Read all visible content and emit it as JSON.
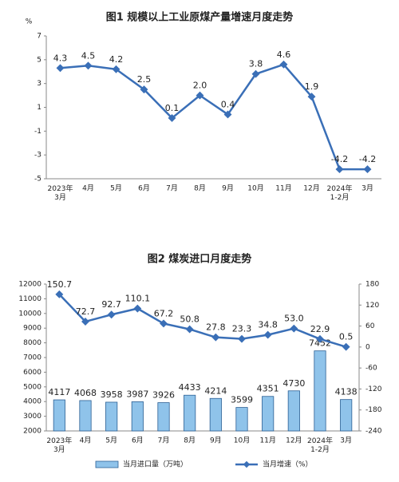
{
  "chart_data": [
    {
      "type": "line",
      "title": "图1  规模以上工业原煤产量增速月度走势",
      "y_label": "%",
      "categories": [
        "2023年\n3月",
        "4月",
        "5月",
        "6月",
        "7月",
        "8月",
        "9月",
        "10月",
        "11月",
        "12月",
        "2024年\n1-2月",
        "3月"
      ],
      "series": [
        {
          "name": "当月增速",
          "color": "#3a6fb7",
          "values": [
            4.3,
            4.5,
            4.2,
            2.5,
            0.1,
            2.0,
            0.4,
            3.8,
            4.6,
            1.9,
            -4.2,
            -4.2
          ],
          "value_labels": [
            "4.3",
            "4.5",
            "4.2",
            "2.5",
            "0.1",
            "2.0",
            "0.4",
            "3.8",
            "4.6",
            "1.9",
            "-4.2",
            "-4.2"
          ]
        }
      ],
      "ylim": [
        -5,
        7
      ],
      "yticks": [
        -5,
        -3,
        -1,
        1,
        3,
        5,
        7
      ]
    },
    {
      "type": "bar_line",
      "title": "图2  煤炭进口月度走势",
      "categories": [
        "2023年\n3月",
        "4月",
        "5月",
        "6月",
        "7月",
        "8月",
        "9月",
        "10月",
        "11月",
        "12月",
        "2024年\n1-2月",
        "3月"
      ],
      "series": [
        {
          "name": "当月进口量（万吨）",
          "type": "bar",
          "color": "#8fc3ea",
          "values": [
            4117,
            4068,
            3958,
            3987,
            3926,
            4433,
            4214,
            3599,
            4351,
            4730,
            7452,
            4138
          ]
        },
        {
          "name": "当月增速（%）",
          "type": "line",
          "axis": "y2",
          "color": "#3a6fb7",
          "values": [
            150.7,
            72.7,
            92.7,
            110.1,
            67.2,
            50.8,
            27.8,
            23.3,
            34.8,
            53.0,
            22.9,
            0.5
          ],
          "value_labels": [
            "150.7",
            "72.7",
            "92.7",
            "110.1",
            "67.2",
            "50.8",
            "27.8",
            "23.3",
            "34.8",
            "53.0",
            "22.9",
            "0.5"
          ]
        }
      ],
      "ylim": [
        2000,
        12000
      ],
      "yticks": [
        2000,
        3000,
        4000,
        5000,
        6000,
        7000,
        8000,
        9000,
        10000,
        11000,
        12000
      ],
      "y2lim": [
        -240,
        180
      ],
      "y2ticks": [
        -240,
        -180,
        -120,
        -60,
        0,
        60,
        120,
        180
      ]
    }
  ]
}
